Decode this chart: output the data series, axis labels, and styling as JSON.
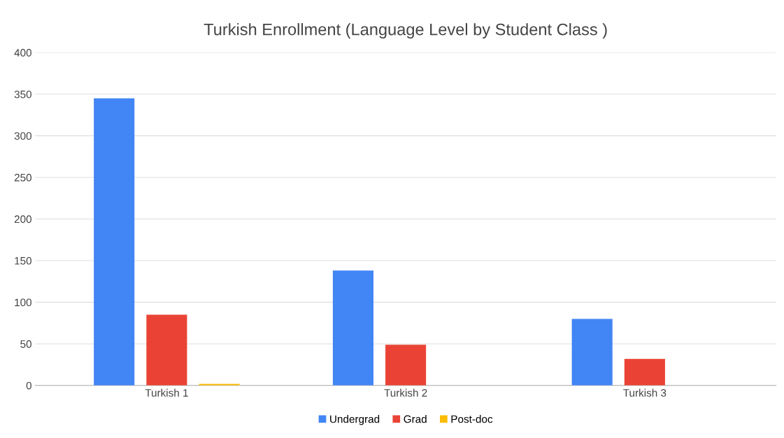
{
  "chart_data": {
    "type": "bar",
    "title": "Turkish Enrollment (Language Level by Student Class )",
    "categories": [
      "Turkish 1",
      "Turkish 2",
      "Turkish 3"
    ],
    "series": [
      {
        "name": "Undergrad",
        "color": "#4285f4",
        "values": [
          345,
          138,
          80
        ]
      },
      {
        "name": "Grad",
        "color": "#ea4335",
        "values": [
          85,
          49,
          32
        ]
      },
      {
        "name": "Post-doc",
        "color": "#fbbc04",
        "values": [
          2,
          0,
          0
        ]
      }
    ],
    "ylim": [
      0,
      400
    ],
    "yticks": [
      0,
      50,
      100,
      150,
      200,
      250,
      300,
      350,
      400
    ],
    "grid": "y",
    "legend": "bottom"
  }
}
